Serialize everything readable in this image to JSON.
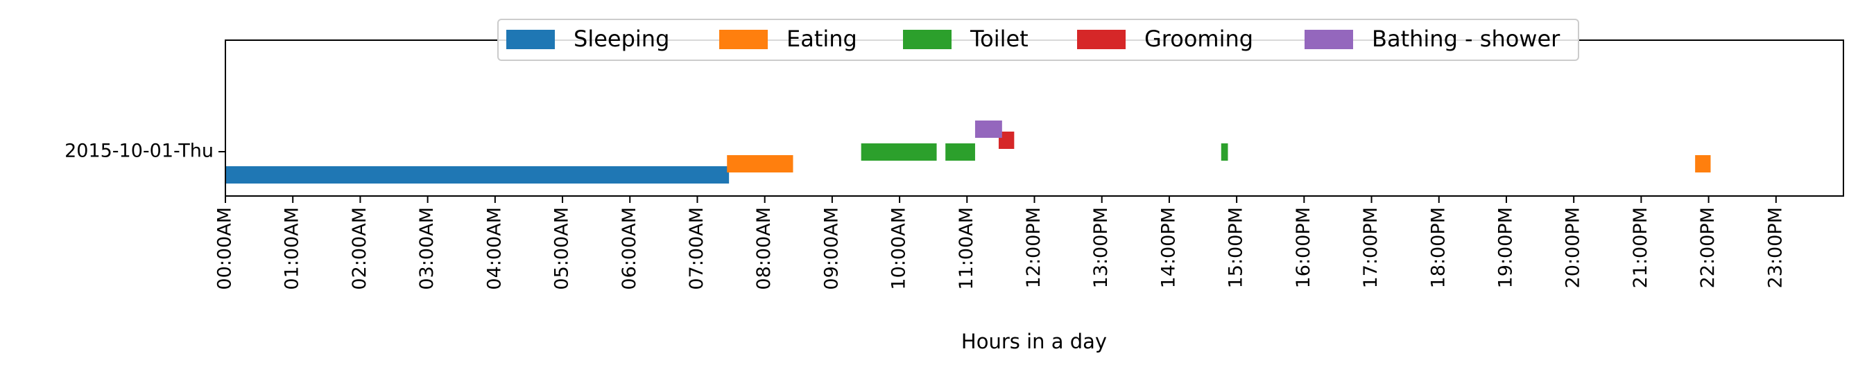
{
  "chart_data": {
    "type": "timeline",
    "title": "",
    "xlabel": "Hours in a day",
    "ylabel": "",
    "xlim_hours": [
      0,
      24
    ],
    "row_label": "2015-10-01-Thu",
    "x_tick_labels": [
      "00:00AM",
      "01:00AM",
      "02:00AM",
      "03:00AM",
      "04:00AM",
      "05:00AM",
      "06:00AM",
      "07:00AM",
      "08:00AM",
      "09:00AM",
      "10:00AM",
      "11:00AM",
      "12:00PM",
      "13:00PM",
      "14:00PM",
      "15:00PM",
      "16:00PM",
      "17:00PM",
      "18:00PM",
      "19:00PM",
      "20:00PM",
      "21:00PM",
      "22:00PM",
      "23:00PM"
    ],
    "legend_position": "top-center",
    "grid": false,
    "series": [
      {
        "name": "Sleeping",
        "color": "#1f77b4",
        "level": 0,
        "segments": [
          [
            0.0,
            7.47
          ]
        ]
      },
      {
        "name": "Eating",
        "color": "#ff7f0e",
        "level": 1,
        "segments": [
          [
            7.44,
            8.42
          ],
          [
            21.8,
            22.03
          ]
        ]
      },
      {
        "name": "Toilet",
        "color": "#2ca02c",
        "level": 2,
        "segments": [
          [
            9.43,
            10.55
          ],
          [
            10.68,
            11.12
          ],
          [
            14.77,
            14.87
          ]
        ]
      },
      {
        "name": "Grooming",
        "color": "#d62728",
        "level": 3,
        "segments": [
          [
            11.47,
            11.7
          ]
        ]
      },
      {
        "name": "Bathing - shower",
        "color": "#9467bd",
        "level": 4,
        "segments": [
          [
            11.12,
            11.52
          ]
        ]
      }
    ]
  }
}
